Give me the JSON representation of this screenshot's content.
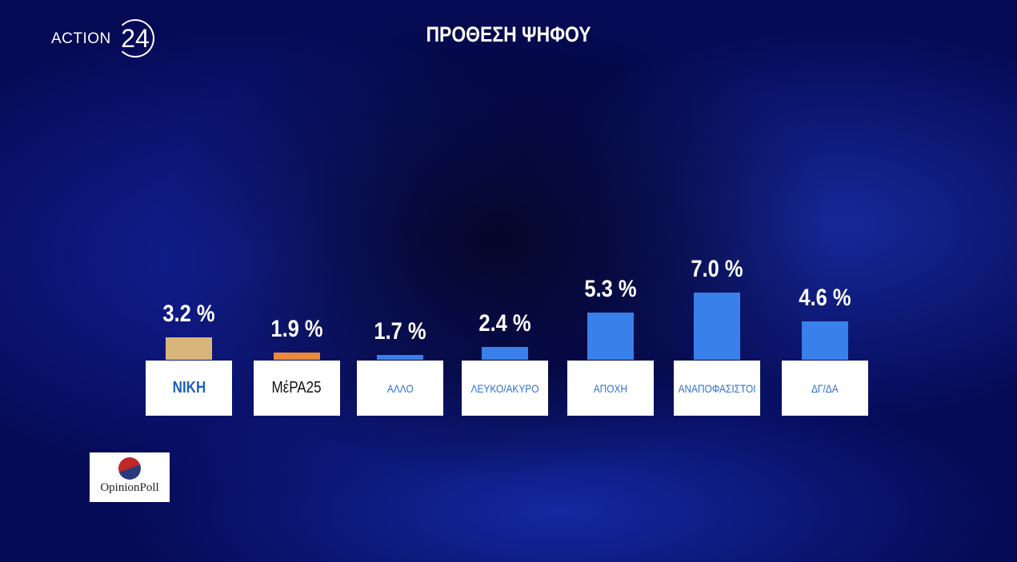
{
  "branding": {
    "channel": "ACTION",
    "channel_number": "24",
    "pollster": "OpinionPoll"
  },
  "chart_data": {
    "type": "bar",
    "title": "ΠΡΟΘΕΣΗ ΨΗΦΟΥ",
    "categories": [
      "ΝΙΚΗ",
      "ΜέΡΑ25",
      "ΑΛΛΟ",
      "ΛΕΥΚΟ/ΑΚΥΡΟ",
      "ΑΠΟΧΗ",
      "ΑΝΑΠΟΦΑΣΙΣΤΟΙ",
      "ΔΓ/ΔΑ"
    ],
    "values": [
      3.2,
      1.9,
      1.7,
      2.4,
      5.3,
      7.0,
      4.6
    ],
    "value_labels": [
      "3.2 %",
      "1.9 %",
      "1.7 %",
      "2.4 %",
      "5.3 %",
      "7.0 %",
      "4.6 %"
    ],
    "colors": [
      "#d8b57a",
      "#ec8a3c",
      "#3a80ea",
      "#3a80ea",
      "#3a80ea",
      "#3a80ea",
      "#3a80ea"
    ],
    "ylim": [
      1.3,
      7.3
    ]
  }
}
